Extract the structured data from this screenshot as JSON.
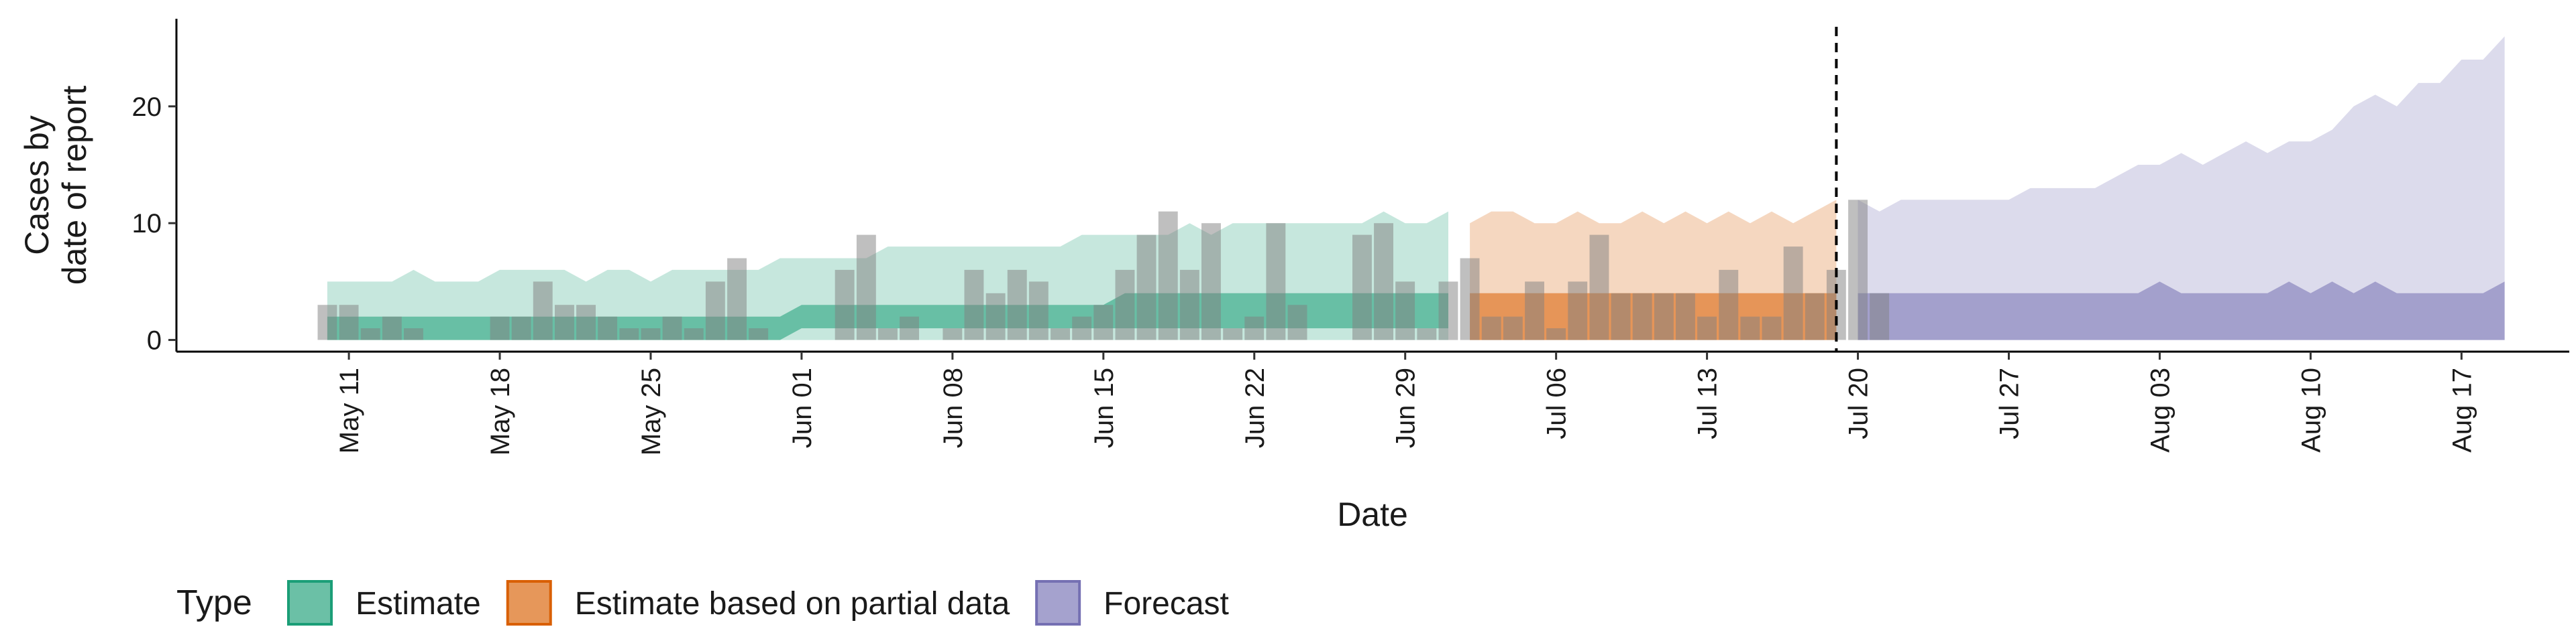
{
  "chart_data": {
    "type": "bar",
    "xlabel": "Date",
    "ylabel_lines": [
      "Cases by",
      "date of report"
    ],
    "yticks": [
      0,
      10,
      20
    ],
    "ylim": [
      -1,
      27.5
    ],
    "xlim": [
      "2020-05-03",
      "2020-08-22"
    ],
    "xticks": [
      "May 11",
      "May 18",
      "May 25",
      "Jun 01",
      "Jun 08",
      "Jun 15",
      "Jun 22",
      "Jun 29",
      "Jul 06",
      "Jul 13",
      "Jul 20",
      "Jul 27",
      "Aug 03",
      "Aug 10",
      "Aug 17"
    ],
    "xtick_dates": [
      "2020-05-11",
      "2020-05-18",
      "2020-05-25",
      "2020-06-01",
      "2020-06-08",
      "2020-06-15",
      "2020-06-22",
      "2020-06-29",
      "2020-07-06",
      "2020-07-13",
      "2020-07-20",
      "2020-07-27",
      "2020-08-03",
      "2020-08-10",
      "2020-08-17"
    ],
    "forecast_start": "2020-07-19",
    "grid": false,
    "legend_position": "bottom",
    "legend_title": "Type",
    "colors": {
      "Estimate": "#1b9e77",
      "Estimate based on partial data": "#d95f02",
      "Forecast": "#7570b3",
      "bars": "#808080",
      "vline": "#000000"
    },
    "legend": [
      {
        "label": "Estimate",
        "key": "Estimate"
      },
      {
        "label": "Estimate based on partial data",
        "key": "Estimate based on partial data"
      },
      {
        "label": "Forecast",
        "key": "Forecast"
      }
    ],
    "reported_cases": {
      "start_date": "2020-05-10",
      "values": [
        3,
        3,
        1,
        2,
        1,
        0,
        0,
        0,
        2,
        2,
        5,
        3,
        3,
        2,
        1,
        1,
        2,
        1,
        5,
        7,
        1,
        0,
        0,
        0,
        6,
        9,
        1,
        2,
        0,
        1,
        6,
        4,
        6,
        5,
        1,
        2,
        3,
        6,
        9,
        11,
        6,
        10,
        1,
        2,
        10,
        3,
        0,
        0,
        9,
        10,
        5,
        1,
        5,
        7,
        2,
        2,
        5,
        1,
        5,
        9,
        4,
        4,
        4,
        4,
        2,
        6,
        2,
        2,
        8,
        4,
        6,
        12,
        4
      ]
    },
    "bands": [
      {
        "type": "Estimate",
        "start_date": "2020-05-10",
        "outer_low": [
          0,
          0,
          0,
          0,
          0,
          0,
          0,
          0,
          0,
          0,
          0,
          0,
          0,
          0,
          0,
          0,
          0,
          0,
          0,
          0,
          0,
          0,
          0,
          0,
          0,
          0,
          0,
          0,
          0,
          0,
          0,
          0,
          0,
          0,
          0,
          0,
          0,
          0,
          0,
          0,
          0,
          0,
          0,
          0,
          0,
          0,
          0,
          0,
          0,
          0,
          0,
          0,
          0
        ],
        "outer_high": [
          5,
          5,
          5,
          5,
          6,
          5,
          5,
          5,
          6,
          6,
          6,
          6,
          5,
          6,
          6,
          5,
          6,
          6,
          6,
          6,
          6,
          7,
          7,
          7,
          7,
          7,
          8,
          8,
          8,
          8,
          8,
          8,
          8,
          8,
          8,
          9,
          9,
          9,
          9,
          9,
          10,
          9,
          10,
          10,
          10,
          10,
          10,
          10,
          10,
          11,
          10,
          10,
          11
        ],
        "inner_low": [
          0,
          0,
          0,
          0,
          0,
          0,
          0,
          0,
          0,
          0,
          0,
          0,
          0,
          0,
          0,
          0,
          0,
          0,
          0,
          0,
          0,
          0,
          1,
          1,
          1,
          1,
          1,
          1,
          1,
          1,
          1,
          1,
          1,
          1,
          1,
          1,
          1,
          1,
          1,
          1,
          1,
          1,
          1,
          1,
          1,
          1,
          1,
          1,
          1,
          1,
          1,
          1,
          1
        ],
        "inner_high": [
          2,
          2,
          2,
          2,
          2,
          2,
          2,
          2,
          2,
          2,
          2,
          2,
          2,
          2,
          2,
          2,
          2,
          2,
          2,
          2,
          2,
          2,
          3,
          3,
          3,
          3,
          3,
          3,
          3,
          3,
          3,
          3,
          3,
          3,
          3,
          3,
          3,
          4,
          4,
          4,
          4,
          4,
          4,
          4,
          4,
          4,
          4,
          4,
          4,
          4,
          4,
          4,
          4
        ]
      },
      {
        "type": "Estimate based on partial data",
        "start_date": "2020-07-02",
        "outer_low": [
          0,
          0,
          0,
          0,
          0,
          0,
          0,
          0,
          0,
          0,
          0,
          0,
          0,
          0,
          0,
          0,
          0,
          0
        ],
        "outer_high": [
          10,
          11,
          11,
          10,
          10,
          11,
          10,
          10,
          11,
          10,
          11,
          10,
          11,
          10,
          11,
          10,
          11,
          12
        ],
        "inner_low": [
          0,
          0,
          0,
          0,
          0,
          0,
          0,
          0,
          0,
          0,
          0,
          0,
          0,
          0,
          0,
          0,
          0,
          0
        ],
        "inner_high": [
          4,
          4,
          4,
          4,
          4,
          4,
          4,
          4,
          4,
          4,
          4,
          4,
          4,
          4,
          4,
          4,
          4,
          4
        ]
      },
      {
        "type": "Forecast",
        "start_date": "2020-07-20",
        "outer_low": [
          0,
          0,
          0,
          0,
          0,
          0,
          0,
          0,
          0,
          0,
          0,
          0,
          0,
          0,
          0,
          0,
          0,
          0,
          0,
          0,
          0,
          0,
          0,
          0,
          0,
          0,
          0,
          0,
          0,
          0,
          0
        ],
        "outer_high": [
          12,
          11,
          12,
          12,
          12,
          12,
          12,
          12,
          13,
          13,
          13,
          13,
          14,
          15,
          15,
          16,
          15,
          16,
          17,
          16,
          17,
          17,
          18,
          20,
          21,
          20,
          22,
          22,
          24,
          24,
          26
        ],
        "inner_low": [
          0,
          0,
          0,
          0,
          0,
          0,
          0,
          0,
          0,
          0,
          0,
          0,
          0,
          0,
          0,
          0,
          0,
          0,
          0,
          0,
          0,
          0,
          0,
          0,
          0,
          0,
          0,
          0,
          0,
          0,
          0
        ],
        "inner_high": [
          4,
          4,
          4,
          4,
          4,
          4,
          4,
          4,
          4,
          4,
          4,
          4,
          4,
          4,
          5,
          4,
          4,
          4,
          4,
          4,
          5,
          4,
          5,
          4,
          5,
          4,
          4,
          4,
          4,
          4,
          5
        ]
      }
    ]
  }
}
